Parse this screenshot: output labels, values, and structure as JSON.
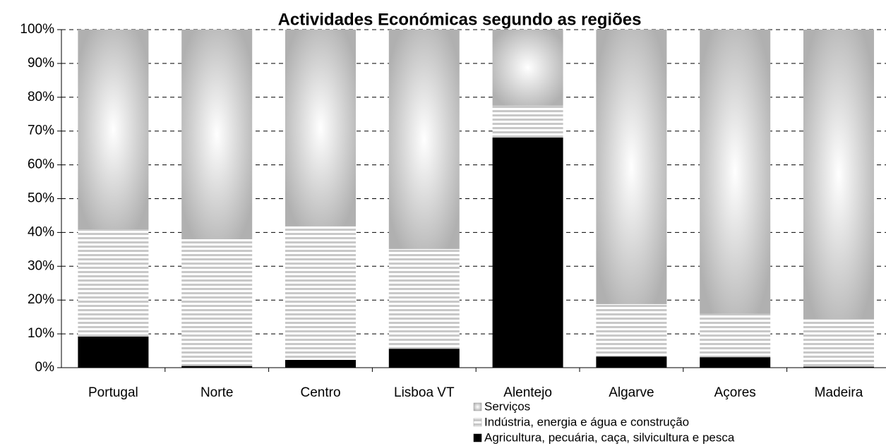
{
  "chart_data": {
    "type": "stacked_bar_100",
    "title": "Actividades Económicas segundo as regiões",
    "categories": [
      "Portugal",
      "Norte",
      "Centro",
      "Lisboa VT",
      "Alentejo",
      "Algarve",
      "Açores",
      "Madeira"
    ],
    "series": [
      {
        "name": "Agricultura, pecuária, caça, silvicultura e pesca",
        "color": "#000000",
        "values": [
          9.2,
          0.5,
          2.3,
          5.6,
          68.1,
          3.3,
          3.1,
          0.3
        ]
      },
      {
        "name": "Indústria, energia e água e construção",
        "color": "#c8c8c8",
        "values": [
          31.7,
          37.5,
          39.5,
          29.5,
          9.4,
          15.5,
          12.8,
          14.1
        ]
      },
      {
        "name": "Serviços",
        "color": "#b4b4b4",
        "values": [
          59.1,
          62.0,
          58.2,
          64.9,
          22.5,
          81.2,
          84.1,
          85.6
        ]
      }
    ],
    "ylim": [
      0,
      100
    ],
    "yticks": [
      {
        "value": 0,
        "label": "0%"
      },
      {
        "value": 10,
        "label": "10%"
      },
      {
        "value": 20,
        "label": "20%"
      },
      {
        "value": 30,
        "label": "30%"
      },
      {
        "value": 40,
        "label": "40%"
      },
      {
        "value": 50,
        "label": "50%"
      },
      {
        "value": 60,
        "label": "60%"
      },
      {
        "value": 70,
        "label": "70%"
      },
      {
        "value": 80,
        "label": "80%"
      },
      {
        "value": 90,
        "label": "90%"
      },
      {
        "value": 100,
        "label": "100%"
      }
    ],
    "grid": true
  }
}
